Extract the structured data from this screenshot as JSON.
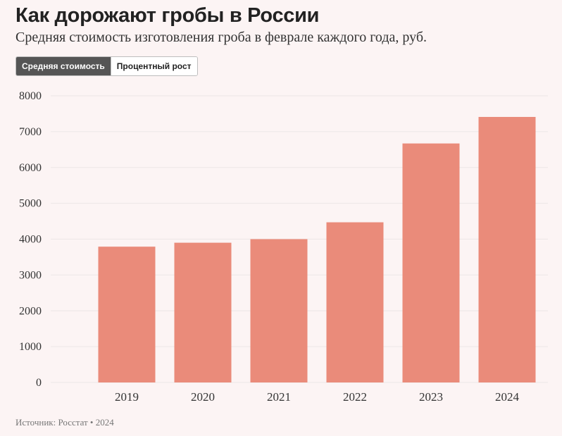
{
  "header": {
    "title": "Как дорожают гробы в России",
    "subtitle": "Средняя стоимость изготовления гроба в феврале каждого года, руб."
  },
  "toggle": {
    "options": [
      "Средняя стоимость",
      "Процентный рост"
    ],
    "selected": "Средняя стоимость"
  },
  "footer": {
    "source": "Источник: Росстат • 2024"
  },
  "colors": {
    "bar": "#ea8b7a",
    "grid": "#ece6e6",
    "background": "#fcf4f4"
  },
  "chart_data": {
    "type": "bar",
    "title": "Как дорожают гробы в России",
    "subtitle": "Средняя стоимость изготовления гроба в феврале каждого года, руб.",
    "xlabel": "",
    "ylabel": "",
    "categories": [
      "2019",
      "2020",
      "2021",
      "2022",
      "2023",
      "2024"
    ],
    "series": [
      {
        "name": "Средняя стоимость",
        "values": [
          3790,
          3900,
          4000,
          4470,
          6670,
          7410
        ]
      }
    ],
    "ylim": [
      0,
      8000
    ],
    "yticks": [
      0,
      1000,
      2000,
      3000,
      4000,
      5000,
      6000,
      7000,
      8000
    ],
    "grid": true,
    "legend": "none"
  }
}
